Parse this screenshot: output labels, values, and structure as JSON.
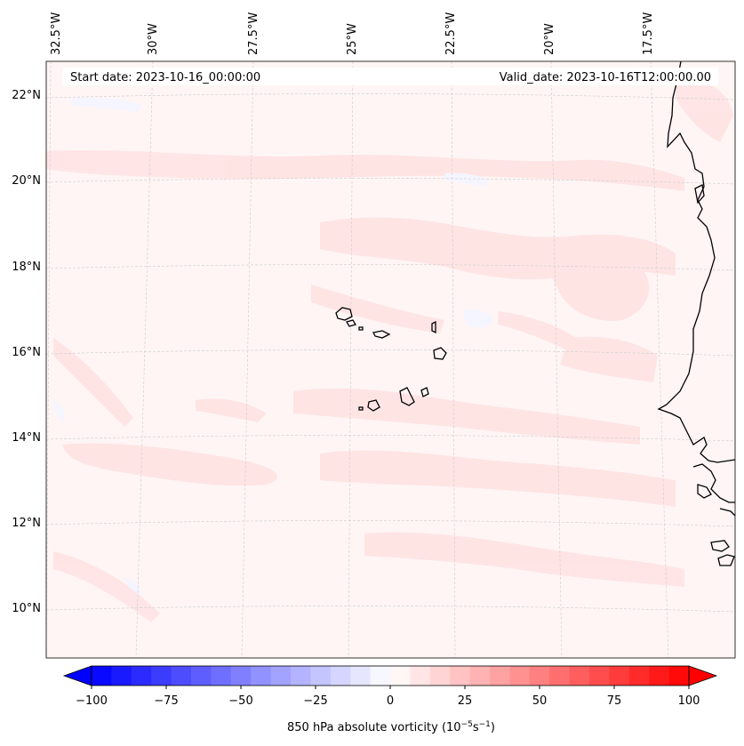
{
  "map": {
    "start_date_label": "Start date: 2023-10-16_00:00:00",
    "valid_date_label": "Valid_date: 2023-10-16T12:00:00.00",
    "lon_labels": [
      "32.5°W",
      "30°W",
      "27.5°W",
      "25°W",
      "22.5°W",
      "20°W",
      "17.5°W"
    ],
    "lat_labels": [
      "22°N",
      "20°N",
      "18°N",
      "16°N",
      "14°N",
      "12°N",
      "10°N"
    ],
    "field": "850 hPa absolute vorticity",
    "colors": {
      "background": "#fff5f5",
      "light_red": "#ffe3e3",
      "light_blue": "#f3f5ff",
      "coast": "#000000",
      "grid": "#cccccc"
    }
  },
  "colorbar": {
    "label_main": "850 hPa absolute vorticity (10",
    "label_exp1": "−5",
    "label_mid": "s",
    "label_exp2": "−1",
    "label_end": ")",
    "ticks": [
      "−100",
      "−75",
      "−50",
      "−25",
      "0",
      "25",
      "50",
      "75",
      "100"
    ],
    "range": [
      -100,
      100
    ],
    "levels": 30,
    "cmap": "bwr"
  }
}
